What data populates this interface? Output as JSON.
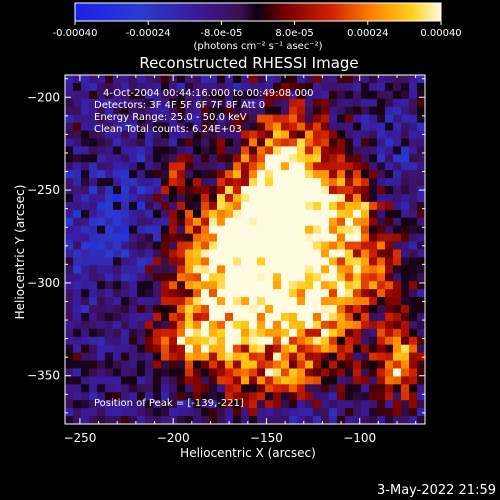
{
  "colorbar": {
    "tick_labels": [
      "-0.00040",
      "-0.00024",
      "-8.0e-05",
      "8.0e-05",
      "0.00024",
      "0.00040"
    ],
    "tick_values": [
      -0.0004,
      -0.00024,
      -8e-05,
      8e-05,
      0.00024,
      0.0004
    ],
    "range": [
      -0.0004,
      0.0004
    ],
    "units_label": "(photons cm⁻² s⁻¹ asec⁻²)"
  },
  "chart_data": {
    "type": "heatmap",
    "title": "Reconstructed RHESSI Image",
    "xlabel": "Heliocentric X (arcsec)",
    "ylabel": "Heliocentric Y (arcsec)",
    "xlim": [
      -258,
      -65
    ],
    "ylim": [
      -376,
      -188
    ],
    "x_ticks": [
      -250,
      -200,
      -150,
      -100
    ],
    "x_tick_labels": [
      "−250",
      "−200",
      "−150",
      "−100"
    ],
    "y_ticks": [
      -200,
      -250,
      -300,
      -350
    ],
    "y_tick_labels": [
      "−200",
      "−250",
      "−300",
      "−350"
    ],
    "grid": false,
    "colormap": "rainbow-like (blue-purple-red-orange-yellow-white)",
    "peak": [
      -139,
      -221
    ],
    "annotations": [
      "4-Oct-2004 00:44:16.000 to 00:49:08.000",
      "Detectors: 3F 4F 5F 6F 7F 8F  Att 0",
      "Energy Range: 25.0 - 50.0 keV",
      "Clean     Total counts: 6.24E+03",
      "Position of Peak = [-139,-221]"
    ]
  },
  "footer": {
    "timestamp": "3-May-2022 21:59"
  }
}
